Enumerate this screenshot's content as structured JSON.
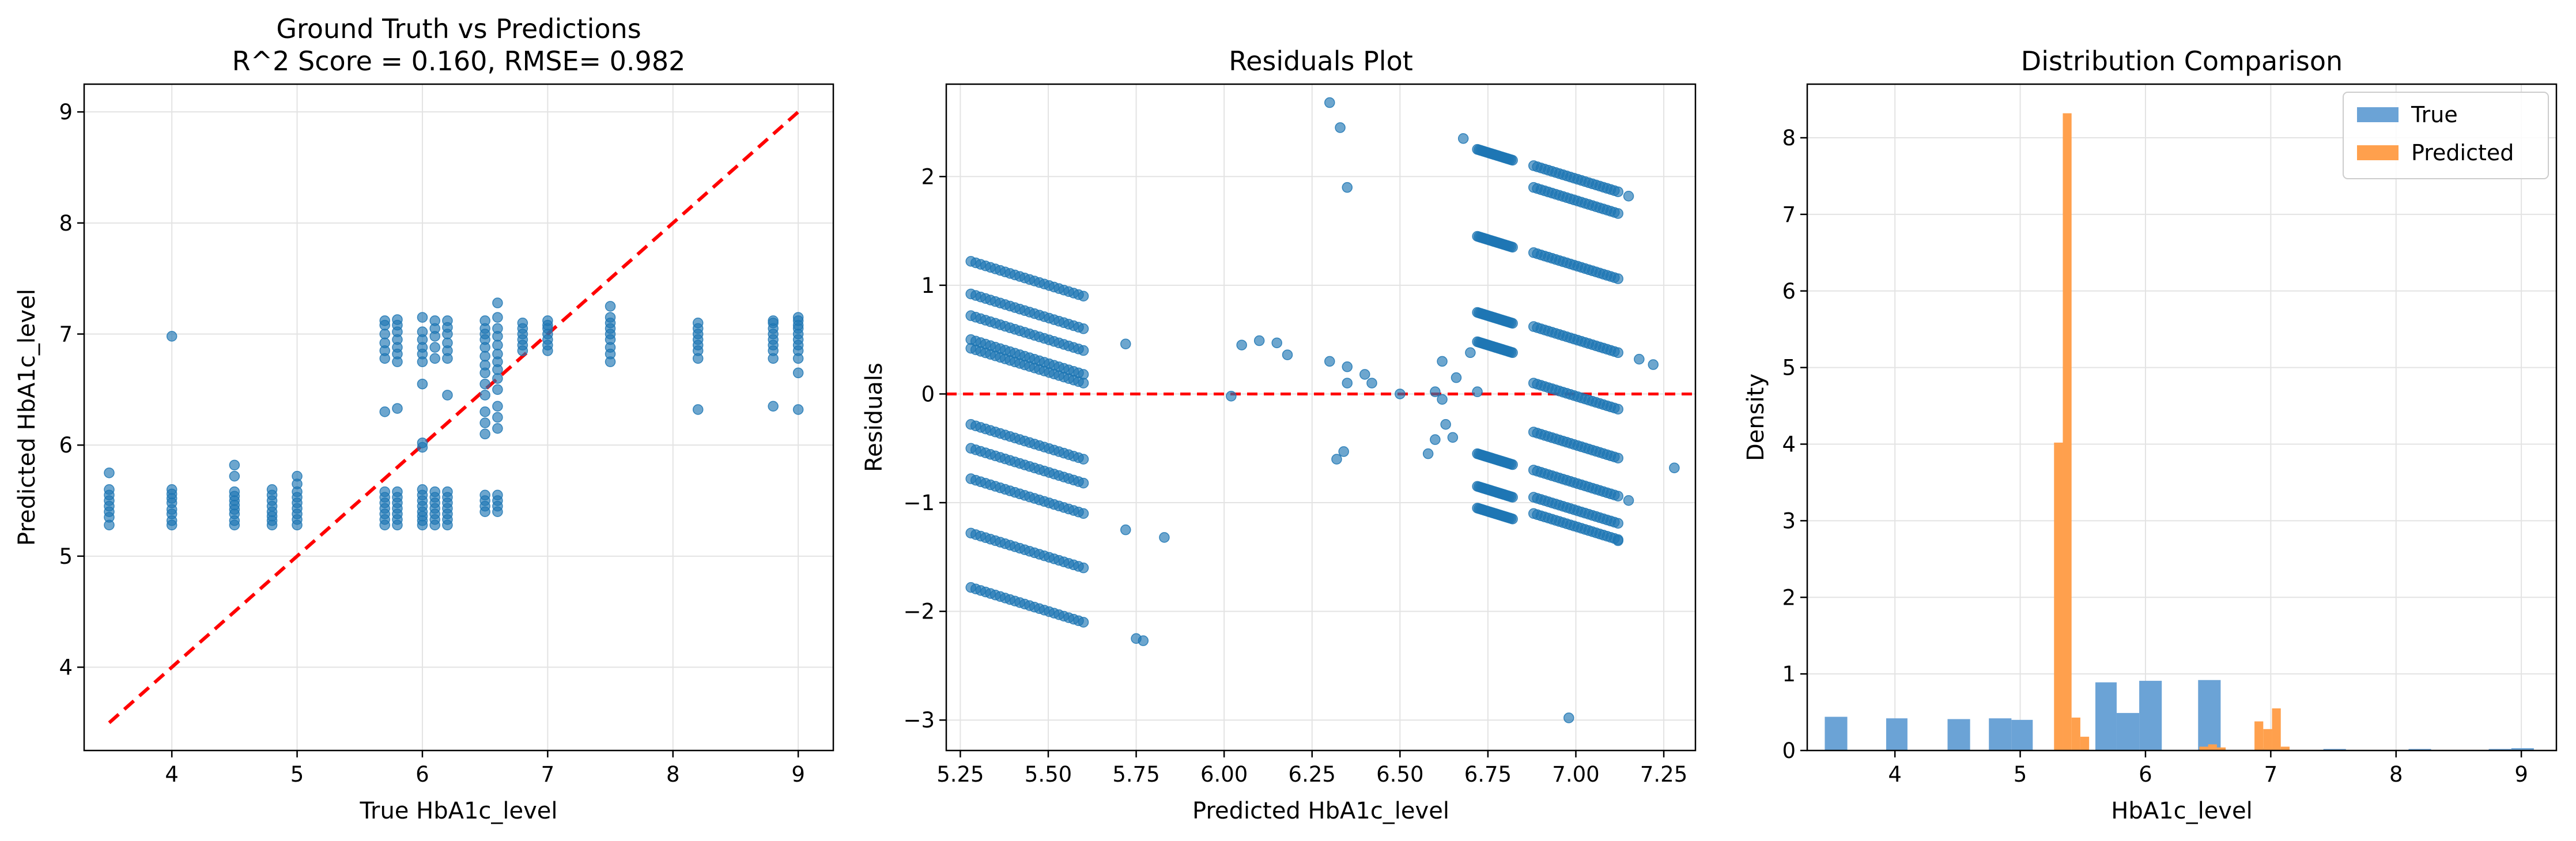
{
  "chart_data": [
    {
      "type": "scatter",
      "title": "Ground Truth vs Predictions",
      "subtitle": "R^2 Score = 0.160,  RMSE= 0.982",
      "xlabel": "True HbA1c_level",
      "ylabel": "Predicted HbA1c_level",
      "xlim": [
        3.3,
        9.28
      ],
      "ylim": [
        3.25,
        9.25
      ],
      "xticks": [
        4,
        5,
        6,
        7,
        8,
        9
      ],
      "yticks": [
        4,
        5,
        6,
        7,
        8,
        9
      ],
      "grid": true,
      "point_color": "#1f77b4",
      "reference_line": {
        "x": [
          3.5,
          9.0
        ],
        "y": [
          3.5,
          9.0
        ],
        "color": "#ff0000",
        "style": "dashed"
      },
      "series": [
        {
          "x": [
            3.5,
            3.5,
            3.5,
            3.5,
            3.5,
            3.5,
            3.5,
            3.5
          ],
          "y": [
            5.28,
            5.35,
            5.4,
            5.45,
            5.5,
            5.55,
            5.6,
            5.75
          ]
        },
        {
          "x": [
            4.0,
            4.0,
            4.0,
            4.0,
            4.0,
            4.0,
            4.0,
            4.0,
            4.0
          ],
          "y": [
            5.28,
            5.32,
            5.38,
            5.42,
            5.48,
            5.52,
            5.56,
            5.6,
            6.98
          ]
        },
        {
          "x": [
            4.5,
            4.5,
            4.5,
            4.5,
            4.5,
            4.5,
            4.5,
            4.5,
            4.5,
            4.5
          ],
          "y": [
            5.28,
            5.32,
            5.38,
            5.42,
            5.46,
            5.5,
            5.54,
            5.58,
            5.72,
            5.82
          ]
        },
        {
          "x": [
            4.8,
            4.8,
            4.8,
            4.8,
            4.8,
            4.8,
            4.8,
            4.8
          ],
          "y": [
            5.28,
            5.32,
            5.36,
            5.4,
            5.45,
            5.5,
            5.55,
            5.6
          ]
        },
        {
          "x": [
            5.0,
            5.0,
            5.0,
            5.0,
            5.0,
            5.0,
            5.0,
            5.0,
            5.0
          ],
          "y": [
            5.28,
            5.33,
            5.38,
            5.43,
            5.48,
            5.53,
            5.58,
            5.65,
            5.72
          ]
        },
        {
          "x": [
            5.7,
            5.7,
            5.7,
            5.7,
            5.7,
            5.7,
            5.7,
            5.7,
            5.7,
            5.7,
            5.7,
            5.7,
            5.7,
            5.7
          ],
          "y": [
            5.28,
            5.33,
            5.38,
            5.43,
            5.48,
            5.53,
            5.58,
            6.3,
            6.78,
            6.85,
            6.92,
            7.0,
            7.08,
            7.12
          ]
        },
        {
          "x": [
            5.8,
            5.8,
            5.8,
            5.8,
            5.8,
            5.8,
            5.8,
            5.8,
            5.8,
            5.8,
            5.8,
            5.8,
            5.8,
            5.8,
            5.8
          ],
          "y": [
            5.28,
            5.33,
            5.38,
            5.43,
            5.48,
            5.53,
            5.58,
            6.33,
            6.75,
            6.82,
            6.88,
            6.95,
            7.02,
            7.08,
            7.13
          ]
        },
        {
          "x": [
            6.0,
            6.0,
            6.0,
            6.0,
            6.0,
            6.0,
            6.0,
            6.0,
            6.0,
            6.0,
            6.0,
            6.0,
            6.0,
            6.0,
            6.0,
            6.0,
            6.0
          ],
          "y": [
            5.28,
            5.32,
            5.36,
            5.4,
            5.45,
            5.5,
            5.55,
            5.6,
            5.98,
            6.02,
            6.55,
            6.75,
            6.82,
            6.88,
            6.95,
            7.02,
            7.15
          ]
        },
        {
          "x": [
            6.1,
            6.1,
            6.1,
            6.1,
            6.1,
            6.1,
            6.1,
            6.1,
            6.1,
            6.1,
            6.1,
            6.1
          ],
          "y": [
            5.28,
            5.33,
            5.38,
            5.43,
            5.48,
            5.53,
            5.58,
            6.78,
            6.88,
            6.98,
            7.05,
            7.12
          ]
        },
        {
          "x": [
            6.2,
            6.2,
            6.2,
            6.2,
            6.2,
            6.2,
            6.2,
            6.2,
            6.2,
            6.2,
            6.2,
            6.2,
            6.2,
            6.2
          ],
          "y": [
            5.28,
            5.33,
            5.38,
            5.43,
            5.48,
            5.53,
            5.58,
            6.45,
            6.78,
            6.85,
            6.92,
            7.0,
            7.06,
            7.12
          ]
        },
        {
          "x": [
            6.5,
            6.5,
            6.5,
            6.5,
            6.5,
            6.5,
            6.5,
            6.5,
            6.5,
            6.5,
            6.5,
            6.5,
            6.5,
            6.5,
            6.5,
            6.5,
            6.5
          ],
          "y": [
            5.4,
            5.45,
            5.5,
            5.55,
            6.1,
            6.2,
            6.3,
            6.45,
            6.55,
            6.65,
            6.72,
            6.8,
            6.88,
            6.95,
            7.0,
            7.05,
            7.12
          ]
        },
        {
          "x": [
            6.6,
            6.6,
            6.6,
            6.6,
            6.6,
            6.6,
            6.6,
            6.6,
            6.6,
            6.6,
            6.6,
            6.6,
            6.6,
            6.6,
            6.6,
            6.6,
            6.6
          ],
          "y": [
            5.4,
            5.45,
            5.5,
            5.55,
            6.15,
            6.25,
            6.35,
            6.5,
            6.6,
            6.68,
            6.75,
            6.82,
            6.9,
            6.98,
            7.05,
            7.15,
            7.28
          ]
        },
        {
          "x": [
            6.8,
            6.8,
            6.8,
            6.8,
            6.8,
            6.8
          ],
          "y": [
            6.85,
            6.9,
            6.95,
            7.0,
            7.05,
            7.1
          ]
        },
        {
          "x": [
            7.0,
            7.0,
            7.0,
            7.0,
            7.0,
            7.0,
            7.0
          ],
          "y": [
            6.85,
            6.9,
            6.95,
            7.0,
            7.05,
            7.08,
            7.12
          ]
        },
        {
          "x": [
            7.5,
            7.5,
            7.5,
            7.5,
            7.5,
            7.5,
            7.5,
            7.5,
            7.5
          ],
          "y": [
            6.75,
            6.82,
            6.88,
            6.95,
            7.0,
            7.05,
            7.1,
            7.15,
            7.25
          ]
        },
        {
          "x": [
            8.2,
            8.2,
            8.2,
            8.2,
            8.2,
            8.2,
            8.2,
            8.2
          ],
          "y": [
            6.32,
            6.78,
            6.85,
            6.9,
            6.95,
            7.0,
            7.05,
            7.1
          ]
        },
        {
          "x": [
            8.8,
            8.8,
            8.8,
            8.8,
            8.8,
            8.8,
            8.8,
            8.8,
            8.8
          ],
          "y": [
            6.35,
            6.78,
            6.85,
            6.9,
            6.95,
            7.0,
            7.05,
            7.1,
            7.12
          ]
        },
        {
          "x": [
            9.0,
            9.0,
            9.0,
            9.0,
            9.0,
            9.0,
            9.0,
            9.0,
            9.0,
            9.0,
            9.0
          ],
          "y": [
            6.32,
            6.65,
            6.78,
            6.85,
            6.9,
            6.95,
            7.0,
            7.05,
            7.08,
            7.12,
            7.15
          ]
        }
      ]
    },
    {
      "type": "scatter",
      "title": "Residuals Plot",
      "xlabel": "Predicted HbA1c_level",
      "ylabel": "Residuals",
      "xlim": [
        5.21,
        7.34
      ],
      "ylim": [
        -3.28,
        2.85
      ],
      "xticks": [
        "5.25",
        "5.50",
        "5.75",
        "6.00",
        "6.25",
        "6.50",
        "6.75",
        "7.00",
        "7.25"
      ],
      "yticks": [
        "−3",
        "−2",
        "−1",
        "0",
        "1",
        "2"
      ],
      "grid": true,
      "point_color": "#1f77b4",
      "reference_line": {
        "y": 0,
        "color": "#ff0000",
        "style": "dashed"
      },
      "bands": [
        {
          "x": [
            5.28,
            5.6
          ],
          "residual_offset": 1.22
        },
        {
          "x": [
            5.28,
            5.6
          ],
          "residual_offset": 0.92
        },
        {
          "x": [
            5.28,
            5.6
          ],
          "residual_offset": 0.72
        },
        {
          "x": [
            5.28,
            5.6
          ],
          "residual_offset": 0.5
        },
        {
          "x": [
            5.28,
            5.6
          ],
          "residual_offset": 0.42
        },
        {
          "x": [
            5.28,
            5.6
          ],
          "residual_offset": -0.28
        },
        {
          "x": [
            5.28,
            5.6
          ],
          "residual_offset": -0.5
        },
        {
          "x": [
            5.28,
            5.6
          ],
          "residual_offset": -0.78
        },
        {
          "x": [
            5.28,
            5.6
          ],
          "residual_offset": -1.28
        },
        {
          "x": [
            5.28,
            5.6
          ],
          "residual_offset": -1.78
        },
        {
          "x": [
            6.72,
            6.82
          ],
          "residual_offset": 2.25
        },
        {
          "x": [
            6.72,
            6.82
          ],
          "residual_offset": 1.45
        },
        {
          "x": [
            6.72,
            6.82
          ],
          "residual_offset": 0.75
        },
        {
          "x": [
            6.72,
            6.82
          ],
          "residual_offset": 0.48
        },
        {
          "x": [
            6.72,
            6.82
          ],
          "residual_offset": -0.55
        },
        {
          "x": [
            6.72,
            6.82
          ],
          "residual_offset": -0.85
        },
        {
          "x": [
            6.72,
            6.82
          ],
          "residual_offset": -1.05
        },
        {
          "x": [
            6.88,
            7.12
          ],
          "residual_offset": 2.1
        },
        {
          "x": [
            6.88,
            7.12
          ],
          "residual_offset": 1.9
        },
        {
          "x": [
            6.88,
            7.12
          ],
          "residual_offset": 1.3
        },
        {
          "x": [
            6.88,
            7.12
          ],
          "residual_offset": 0.62
        },
        {
          "x": [
            6.88,
            7.12
          ],
          "residual_offset": 0.1
        },
        {
          "x": [
            6.88,
            7.12
          ],
          "residual_offset": -0.35
        },
        {
          "x": [
            6.88,
            7.12
          ],
          "residual_offset": -0.7
        },
        {
          "x": [
            6.88,
            7.12
          ],
          "residual_offset": -0.95
        },
        {
          "x": [
            6.88,
            7.12
          ],
          "residual_offset": -1.1
        }
      ],
      "points": {
        "x": [
          5.72,
          5.75,
          5.77,
          5.83,
          5.72,
          6.02,
          6.05,
          6.1,
          6.15,
          6.18,
          6.3,
          6.33,
          6.35,
          6.3,
          6.35,
          6.35,
          6.4,
          6.42,
          6.32,
          6.34,
          6.5,
          6.58,
          6.6,
          6.62,
          6.6,
          6.63,
          6.66,
          6.68,
          6.7,
          6.72,
          6.65,
          6.62,
          7.15,
          7.18,
          7.22,
          7.28,
          7.15,
          7.12,
          6.98
        ],
        "y": [
          -1.25,
          -2.25,
          -2.27,
          -1.32,
          0.46,
          -0.02,
          0.45,
          0.49,
          0.47,
          0.36,
          2.68,
          2.45,
          1.9,
          0.3,
          0.25,
          0.1,
          0.18,
          0.1,
          -0.6,
          -0.53,
          0.0,
          -0.55,
          0.02,
          -0.05,
          -0.42,
          -0.28,
          0.15,
          2.35,
          0.38,
          0.02,
          -0.4,
          0.3,
          1.82,
          0.32,
          0.27,
          -0.68,
          -0.98,
          -1.35,
          -2.98
        ]
      }
    },
    {
      "type": "bar",
      "title": "Distribution Comparison",
      "xlabel": "HbA1c_level",
      "ylabel": "Density",
      "xlim": [
        3.3,
        9.28
      ],
      "ylim": [
        0,
        8.7
      ],
      "xticks": [
        4,
        5,
        6,
        7,
        8,
        9
      ],
      "yticks": [
        0,
        1,
        2,
        3,
        4,
        5,
        6,
        7,
        8
      ],
      "grid": true,
      "legend_position": "top-right",
      "series": [
        {
          "name": "True",
          "color": "#6ba3d6",
          "bins": [
            {
              "x0": 3.44,
              "x1": 3.62,
              "density": 0.44
            },
            {
              "x0": 3.93,
              "x1": 4.1,
              "density": 0.42
            },
            {
              "x0": 4.42,
              "x1": 4.6,
              "density": 0.41
            },
            {
              "x0": 4.75,
              "x1": 4.93,
              "density": 0.42
            },
            {
              "x0": 4.93,
              "x1": 5.1,
              "density": 0.4
            },
            {
              "x0": 5.6,
              "x1": 5.77,
              "density": 0.89
            },
            {
              "x0": 5.77,
              "x1": 5.95,
              "density": 0.49
            },
            {
              "x0": 5.95,
              "x1": 6.13,
              "density": 0.91
            },
            {
              "x0": 6.42,
              "x1": 6.6,
              "density": 0.92
            },
            {
              "x0": 6.9,
              "x1": 7.08,
              "density": 0.03
            },
            {
              "x0": 7.42,
              "x1": 7.6,
              "density": 0.02
            },
            {
              "x0": 8.1,
              "x1": 8.28,
              "density": 0.02
            },
            {
              "x0": 8.74,
              "x1": 8.92,
              "density": 0.02
            },
            {
              "x0": 8.92,
              "x1": 9.1,
              "density": 0.03
            }
          ]
        },
        {
          "name": "Predicted",
          "color": "#ffa04d",
          "bins": [
            {
              "x0": 5.27,
              "x1": 5.34,
              "density": 4.02
            },
            {
              "x0": 5.34,
              "x1": 5.41,
              "density": 8.32
            },
            {
              "x0": 5.41,
              "x1": 5.48,
              "density": 0.43
            },
            {
              "x0": 5.48,
              "x1": 5.55,
              "density": 0.18
            },
            {
              "x0": 6.43,
              "x1": 6.5,
              "density": 0.05
            },
            {
              "x0": 6.5,
              "x1": 6.57,
              "density": 0.08
            },
            {
              "x0": 6.57,
              "x1": 6.64,
              "density": 0.04
            },
            {
              "x0": 6.87,
              "x1": 6.94,
              "density": 0.38
            },
            {
              "x0": 6.94,
              "x1": 7.01,
              "density": 0.28
            },
            {
              "x0": 7.01,
              "x1": 7.08,
              "density": 0.55
            },
            {
              "x0": 7.08,
              "x1": 7.15,
              "density": 0.05
            }
          ]
        }
      ]
    }
  ]
}
